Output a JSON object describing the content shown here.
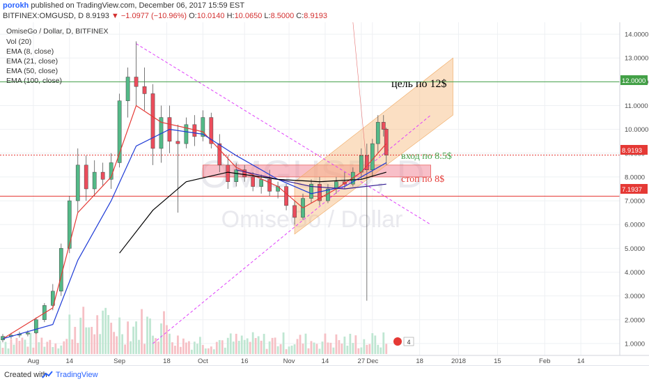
{
  "header": {
    "author": "porokh",
    "published": "published on TradingView.com, December 06, 2017 15:59 EST",
    "symbol": "BITFINEX:OMGUSD, D",
    "last": "8.9193",
    "change": "−1.0977 (−10.96%)",
    "o_label": "O:",
    "o": "10.0140",
    "h_label": "H:",
    "h": "10.0650",
    "l_label": "L:",
    "l": "8.5000",
    "c_label": "C:",
    "c": "8.9193"
  },
  "legend": {
    "title": "OmiseGo / Dollar, D, BITFINEX",
    "items": [
      "Vol (20)",
      "EMA (8, close)",
      "EMA (21, close)",
      "EMA (50, close)",
      "EMA (100, close)"
    ]
  },
  "watermark": {
    "symbol": "OMGUSD, D",
    "name": "OmiseGo / Dollar"
  },
  "annotations": {
    "target": "цель по 12$",
    "entry": "вход по 8.5$",
    "stop": "стоп по 8$"
  },
  "price_labels": {
    "current": "8.9193",
    "level1": "12.0000",
    "level2": "7.1937"
  },
  "volume_badge": "4",
  "footer": {
    "created": "Created with",
    "brand": "TradingView"
  },
  "colors": {
    "up": "#53b987",
    "down": "#eb4d5c",
    "bg": "#ffffff",
    "ema8": "#e53935",
    "ema21": "#1e3bd6",
    "ema50": "#311b92",
    "ema100": "#000000",
    "channel": "#f7b97a",
    "entry_zone": "#f28b9a",
    "trendline": "#e040fb",
    "level_green": "#43a047",
    "level_red": "#e53935"
  },
  "chart_data": {
    "type": "candlestick",
    "title": "OmiseGo / Dollar, D, BITFINEX",
    "y_axis": {
      "range": [
        0.5,
        14.5
      ],
      "ticks": [
        "1.0000",
        "2.0000",
        "3.0000",
        "4.0000",
        "5.0000",
        "6.0000",
        "7.0000",
        "8.0000",
        "9.0000",
        "10.0000",
        "11.0000",
        "12.0000",
        "13.0000",
        "14.0000"
      ]
    },
    "x_axis": {
      "range": [
        "2017-07-20",
        "2018-02-28"
      ],
      "ticks": [
        {
          "date": "2017-08-01",
          "label": "Aug"
        },
        {
          "date": "2017-08-14",
          "label": "14"
        },
        {
          "date": "2017-09-01",
          "label": "Sep"
        },
        {
          "date": "2017-09-18",
          "label": "18"
        },
        {
          "date": "2017-10-01",
          "label": "Oct"
        },
        {
          "date": "2017-10-16",
          "label": "16"
        },
        {
          "date": "2017-11-01",
          "label": "Nov"
        },
        {
          "date": "2017-11-14",
          "label": "14"
        },
        {
          "date": "2017-11-27",
          "label": "27"
        },
        {
          "date": "2017-12-01",
          "label": "Dec"
        },
        {
          "date": "2017-12-18",
          "label": "18"
        },
        {
          "date": "2018-01-01",
          "label": "2018"
        },
        {
          "date": "2018-01-15",
          "label": "15"
        },
        {
          "date": "2018-02-01",
          "label": "Feb"
        },
        {
          "date": "2018-02-14",
          "label": "14"
        }
      ]
    },
    "candles": [
      {
        "d": "2017-07-21",
        "o": 1.15,
        "h": 1.4,
        "l": 1.05,
        "c": 1.3
      },
      {
        "d": "2017-07-24",
        "o": 1.3,
        "h": 1.45,
        "l": 1.2,
        "c": 1.35
      },
      {
        "d": "2017-07-27",
        "o": 1.35,
        "h": 1.5,
        "l": 1.25,
        "c": 1.4
      },
      {
        "d": "2017-07-30",
        "o": 1.4,
        "h": 1.55,
        "l": 1.3,
        "c": 1.45
      },
      {
        "d": "2017-08-02",
        "o": 1.45,
        "h": 2.1,
        "l": 1.4,
        "c": 2.0
      },
      {
        "d": "2017-08-05",
        "o": 2.0,
        "h": 2.7,
        "l": 1.9,
        "c": 2.6
      },
      {
        "d": "2017-08-08",
        "o": 2.6,
        "h": 3.5,
        "l": 2.4,
        "c": 3.2
      },
      {
        "d": "2017-08-11",
        "o": 3.2,
        "h": 5.2,
        "l": 3.0,
        "c": 5.0
      },
      {
        "d": "2017-08-14",
        "o": 5.0,
        "h": 7.2,
        "l": 4.8,
        "c": 7.0
      },
      {
        "d": "2017-08-17",
        "o": 7.0,
        "h": 9.2,
        "l": 6.5,
        "c": 8.5
      },
      {
        "d": "2017-08-20",
        "o": 8.5,
        "h": 8.9,
        "l": 7.0,
        "c": 7.5
      },
      {
        "d": "2017-08-23",
        "o": 7.5,
        "h": 8.7,
        "l": 7.2,
        "c": 8.2
      },
      {
        "d": "2017-08-26",
        "o": 8.2,
        "h": 8.6,
        "l": 7.6,
        "c": 7.9
      },
      {
        "d": "2017-08-29",
        "o": 7.9,
        "h": 9.0,
        "l": 7.5,
        "c": 8.6
      },
      {
        "d": "2017-09-01",
        "o": 8.6,
        "h": 11.5,
        "l": 8.4,
        "c": 11.2
      },
      {
        "d": "2017-09-04",
        "o": 11.2,
        "h": 12.6,
        "l": 10.5,
        "c": 12.2
      },
      {
        "d": "2017-09-07",
        "o": 12.2,
        "h": 13.7,
        "l": 11.0,
        "c": 11.8
      },
      {
        "d": "2017-09-10",
        "o": 11.8,
        "h": 12.6,
        "l": 10.8,
        "c": 11.5
      },
      {
        "d": "2017-09-13",
        "o": 11.5,
        "h": 11.9,
        "l": 8.5,
        "c": 9.2
      },
      {
        "d": "2017-09-16",
        "o": 9.2,
        "h": 11.0,
        "l": 8.6,
        "c": 10.5
      },
      {
        "d": "2017-09-19",
        "o": 10.5,
        "h": 11.0,
        "l": 9.0,
        "c": 9.5
      },
      {
        "d": "2017-09-22",
        "o": 9.5,
        "h": 10.2,
        "l": 6.5,
        "c": 9.4
      },
      {
        "d": "2017-09-25",
        "o": 9.4,
        "h": 10.5,
        "l": 9.2,
        "c": 10.2
      },
      {
        "d": "2017-09-28",
        "o": 10.2,
        "h": 10.6,
        "l": 9.3,
        "c": 9.7
      },
      {
        "d": "2017-10-01",
        "o": 9.7,
        "h": 10.8,
        "l": 9.5,
        "c": 10.5
      },
      {
        "d": "2017-10-04",
        "o": 10.5,
        "h": 10.7,
        "l": 9.2,
        "c": 9.4
      },
      {
        "d": "2017-10-07",
        "o": 9.4,
        "h": 9.8,
        "l": 8.2,
        "c": 8.5
      },
      {
        "d": "2017-10-10",
        "o": 8.5,
        "h": 8.9,
        "l": 7.5,
        "c": 7.8
      },
      {
        "d": "2017-10-13",
        "o": 7.8,
        "h": 8.6,
        "l": 7.6,
        "c": 8.3
      },
      {
        "d": "2017-10-16",
        "o": 8.3,
        "h": 8.5,
        "l": 7.8,
        "c": 8.0
      },
      {
        "d": "2017-10-19",
        "o": 8.0,
        "h": 8.2,
        "l": 7.4,
        "c": 7.6
      },
      {
        "d": "2017-10-22",
        "o": 7.6,
        "h": 8.1,
        "l": 7.3,
        "c": 7.9
      },
      {
        "d": "2017-10-25",
        "o": 7.9,
        "h": 8.3,
        "l": 7.2,
        "c": 7.4
      },
      {
        "d": "2017-10-28",
        "o": 7.4,
        "h": 7.8,
        "l": 7.1,
        "c": 7.6
      },
      {
        "d": "2017-10-31",
        "o": 7.6,
        "h": 7.7,
        "l": 6.6,
        "c": 6.8
      },
      {
        "d": "2017-11-03",
        "o": 6.8,
        "h": 7.0,
        "l": 6.0,
        "c": 6.3
      },
      {
        "d": "2017-11-06",
        "o": 6.3,
        "h": 7.3,
        "l": 6.2,
        "c": 7.1
      },
      {
        "d": "2017-11-09",
        "o": 7.1,
        "h": 7.9,
        "l": 6.9,
        "c": 7.7
      },
      {
        "d": "2017-11-12",
        "o": 7.7,
        "h": 8.0,
        "l": 6.8,
        "c": 7.0
      },
      {
        "d": "2017-11-15",
        "o": 7.0,
        "h": 7.7,
        "l": 6.9,
        "c": 7.5
      },
      {
        "d": "2017-11-18",
        "o": 7.5,
        "h": 8.0,
        "l": 7.3,
        "c": 7.8
      },
      {
        "d": "2017-11-21",
        "o": 7.8,
        "h": 8.2,
        "l": 7.5,
        "c": 7.7
      },
      {
        "d": "2017-11-24",
        "o": 7.7,
        "h": 8.4,
        "l": 7.6,
        "c": 8.2
      },
      {
        "d": "2017-11-27",
        "o": 8.2,
        "h": 9.2,
        "l": 7.9,
        "c": 8.9
      },
      {
        "d": "2017-11-29",
        "o": 8.9,
        "h": 9.4,
        "l": 2.8,
        "c": 8.3
      },
      {
        "d": "2017-12-01",
        "o": 8.3,
        "h": 9.6,
        "l": 8.0,
        "c": 9.4
      },
      {
        "d": "2017-12-03",
        "o": 9.4,
        "h": 10.6,
        "l": 9.0,
        "c": 10.3
      },
      {
        "d": "2017-12-05",
        "o": 10.3,
        "h": 10.6,
        "l": 9.7,
        "c": 10.0
      },
      {
        "d": "2017-12-06",
        "o": 10.01,
        "h": 10.07,
        "l": 8.5,
        "c": 8.92
      }
    ],
    "ema": [
      {
        "name": "EMA (8, close)",
        "color": "#e53935",
        "points": [
          [
            "2017-07-21",
            1.2
          ],
          [
            "2017-08-08",
            2.5
          ],
          [
            "2017-08-17",
            6.5
          ],
          [
            "2017-08-29",
            8.0
          ],
          [
            "2017-09-07",
            11.0
          ],
          [
            "2017-09-16",
            10.3
          ],
          [
            "2017-10-01",
            9.9
          ],
          [
            "2017-10-13",
            8.4
          ],
          [
            "2017-10-28",
            7.6
          ],
          [
            "2017-11-06",
            6.7
          ],
          [
            "2017-11-18",
            7.5
          ],
          [
            "2017-11-27",
            8.2
          ],
          [
            "2017-12-06",
            9.4
          ]
        ]
      },
      {
        "name": "EMA (21, close)",
        "color": "#1e3bd6",
        "points": [
          [
            "2017-07-21",
            1.2
          ],
          [
            "2017-08-08",
            1.8
          ],
          [
            "2017-08-17",
            4.5
          ],
          [
            "2017-08-29",
            7.0
          ],
          [
            "2017-09-07",
            9.3
          ],
          [
            "2017-09-19",
            10.0
          ],
          [
            "2017-10-01",
            9.8
          ],
          [
            "2017-10-13",
            8.9
          ],
          [
            "2017-10-28",
            7.9
          ],
          [
            "2017-11-09",
            7.3
          ],
          [
            "2017-11-21",
            7.6
          ],
          [
            "2017-12-06",
            8.6
          ]
        ]
      },
      {
        "name": "EMA (50, close)",
        "color": "#311b92",
        "points": [
          [
            "2017-10-13",
            8.3
          ],
          [
            "2017-10-28",
            7.9
          ],
          [
            "2017-11-09",
            7.6
          ],
          [
            "2017-11-21",
            7.5
          ],
          [
            "2017-12-06",
            7.7
          ]
        ]
      },
      {
        "name": "EMA (100, close)",
        "color": "#000000",
        "points": [
          [
            "2017-09-01",
            4.8
          ],
          [
            "2017-09-13",
            6.6
          ],
          [
            "2017-09-25",
            7.8
          ],
          [
            "2017-10-10",
            8.2
          ],
          [
            "2017-10-28",
            7.9
          ],
          [
            "2017-11-12",
            7.8
          ],
          [
            "2017-11-27",
            7.9
          ],
          [
            "2017-12-06",
            8.2
          ]
        ]
      }
    ],
    "levels": [
      {
        "value": 12.0,
        "color": "#43a047"
      },
      {
        "value": 8.9193,
        "color": "#e53935"
      },
      {
        "value": 7.1937,
        "color": "#e53935"
      }
    ],
    "channel": {
      "lower": [
        [
          "2017-11-03",
          5.6
        ],
        [
          "2017-12-30",
          10.6
        ]
      ],
      "upper": [
        [
          "2017-11-03",
          7.8
        ],
        [
          "2017-12-30",
          13.0
        ]
      ]
    },
    "entry_zone": {
      "from": "2017-10-01",
      "to": "2017-12-22",
      "low": 8.0,
      "high": 8.5
    },
    "trendlines": [
      [
        [
          "2017-09-07",
          13.6
        ],
        [
          "2017-12-22",
          6.0
        ]
      ],
      [
        [
          "2017-09-13",
          1.0
        ],
        [
          "2017-12-22",
          10.6
        ]
      ]
    ]
  }
}
